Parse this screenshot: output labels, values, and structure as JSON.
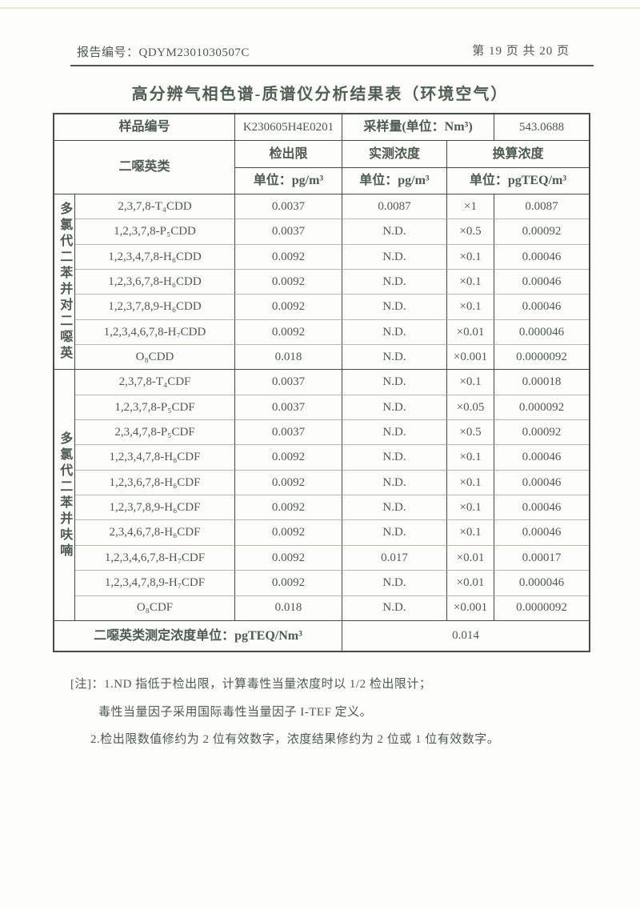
{
  "header": {
    "report_no_label": "报告编号：",
    "report_no": "QDYM2301030507C",
    "page_info": "第 19 页 共 20 页"
  },
  "title": "高分辨气相色谱-质谱仪分析结果表（环境空气）",
  "colors": {
    "ink": "#4d5a4f",
    "border_dark": "#454e44",
    "border_light": "#b7bdac",
    "paper": "#fdfdfb"
  },
  "table": {
    "sample": {
      "label": "样品编号",
      "id": "K230605H4E0201",
      "volume_label": "采样量(单位：Nm³)",
      "volume_value": "543.0688"
    },
    "columns": {
      "analyte": "二噁英类",
      "detection_limit": "检出限",
      "measured": "实测浓度",
      "converted": "换算浓度",
      "dl_unit": "单位：pg/m³",
      "measured_unit": "单位：pg/m³",
      "converted_unit": "单位：pgTEQ/m³"
    },
    "groups": [
      {
        "label": "多氯代二苯并对二噁英",
        "rows": [
          {
            "name": "2,3,7,8-T₄CDD",
            "dl": "0.0037",
            "measured": "0.0087",
            "factor": "×1",
            "teq": "0.0087"
          },
          {
            "name": "1,2,3,7,8-P₅CDD",
            "dl": "0.0037",
            "measured": "N.D.",
            "factor": "×0.5",
            "teq": "0.00092"
          },
          {
            "name": "1,2,3,4,7,8-H₆CDD",
            "dl": "0.0092",
            "measured": "N.D.",
            "factor": "×0.1",
            "teq": "0.00046"
          },
          {
            "name": "1,2,3,6,7,8-H₆CDD",
            "dl": "0.0092",
            "measured": "N.D.",
            "factor": "×0.1",
            "teq": "0.00046"
          },
          {
            "name": "1,2,3,7,8,9-H₆CDD",
            "dl": "0.0092",
            "measured": "N.D.",
            "factor": "×0.1",
            "teq": "0.00046"
          },
          {
            "name": "1,2,3,4,6,7,8-H₇CDD",
            "dl": "0.0092",
            "measured": "N.D.",
            "factor": "×0.01",
            "teq": "0.000046"
          },
          {
            "name": "O₈CDD",
            "dl": "0.018",
            "measured": "N.D.",
            "factor": "×0.001",
            "teq": "0.0000092"
          }
        ]
      },
      {
        "label": "多氯代二苯并呋喃",
        "rows": [
          {
            "name": "2,3,7,8-T₄CDF",
            "dl": "0.0037",
            "measured": "N.D.",
            "factor": "×0.1",
            "teq": "0.00018"
          },
          {
            "name": "1,2,3,7,8-P₅CDF",
            "dl": "0.0037",
            "measured": "N.D.",
            "factor": "×0.05",
            "teq": "0.000092"
          },
          {
            "name": "2,3,4,7,8-P₅CDF",
            "dl": "0.0037",
            "measured": "N.D.",
            "factor": "×0.5",
            "teq": "0.00092"
          },
          {
            "name": "1,2,3,4,7,8-H₆CDF",
            "dl": "0.0092",
            "measured": "N.D.",
            "factor": "×0.1",
            "teq": "0.00046"
          },
          {
            "name": "1,2,3,6,7,8-H₆CDF",
            "dl": "0.0092",
            "measured": "N.D.",
            "factor": "×0.1",
            "teq": "0.00046"
          },
          {
            "name": "1,2,3,7,8,9-H₆CDF",
            "dl": "0.0092",
            "measured": "N.D.",
            "factor": "×0.1",
            "teq": "0.00046"
          },
          {
            "name": "2,3,4,6,7,8-H₆CDF",
            "dl": "0.0092",
            "measured": "N.D.",
            "factor": "×0.1",
            "teq": "0.00046"
          },
          {
            "name": "1,2,3,4,6,7,8-H₇CDF",
            "dl": "0.0092",
            "measured": "0.017",
            "factor": "×0.01",
            "teq": "0.00017"
          },
          {
            "name": "1,2,3,4,7,8,9-H₇CDF",
            "dl": "0.0092",
            "measured": "N.D.",
            "factor": "×0.01",
            "teq": "0.000046"
          },
          {
            "name": "O₈CDF",
            "dl": "0.018",
            "measured": "N.D.",
            "factor": "×0.001",
            "teq": "0.0000092"
          }
        ]
      }
    ],
    "footer": {
      "label": "二噁英类测定浓度单位：pgTEQ/Nm³",
      "value": "0.014"
    }
  },
  "notes": {
    "line1": "[注]：1.ND 指低于检出限，计算毒性当量浓度时以 1/2 检出限计；",
    "line2": "毒性当量因子采用国际毒性当量因子 I-TEF 定义。",
    "line3": "2.检出限数值修约为 2 位有效数字，浓度结果修约为 2 位或 1 位有效数字。"
  }
}
